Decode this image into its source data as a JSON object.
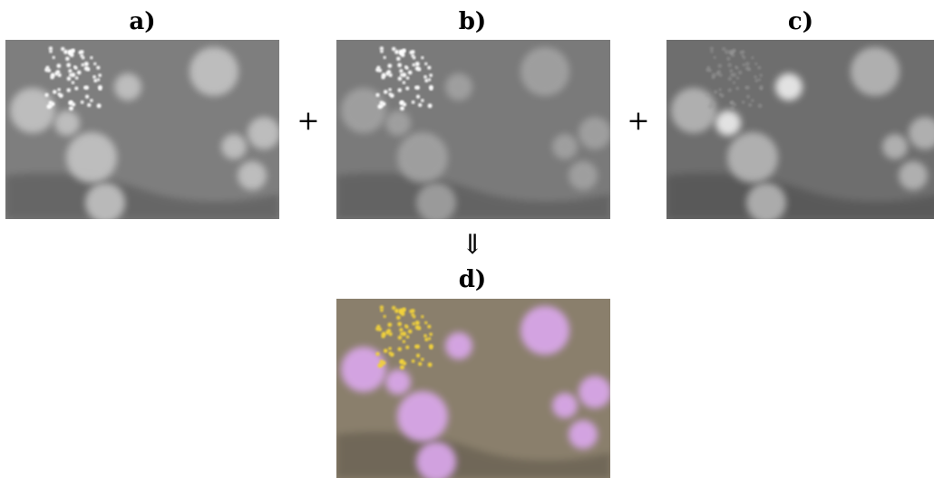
{
  "panels": [
    {
      "label": "a)"
    },
    {
      "label": "b)"
    },
    {
      "label": "c)"
    },
    {
      "label": "d)"
    }
  ],
  "operators": {
    "plus_1": "+",
    "plus_2": "+",
    "arrow": "⇓"
  }
}
